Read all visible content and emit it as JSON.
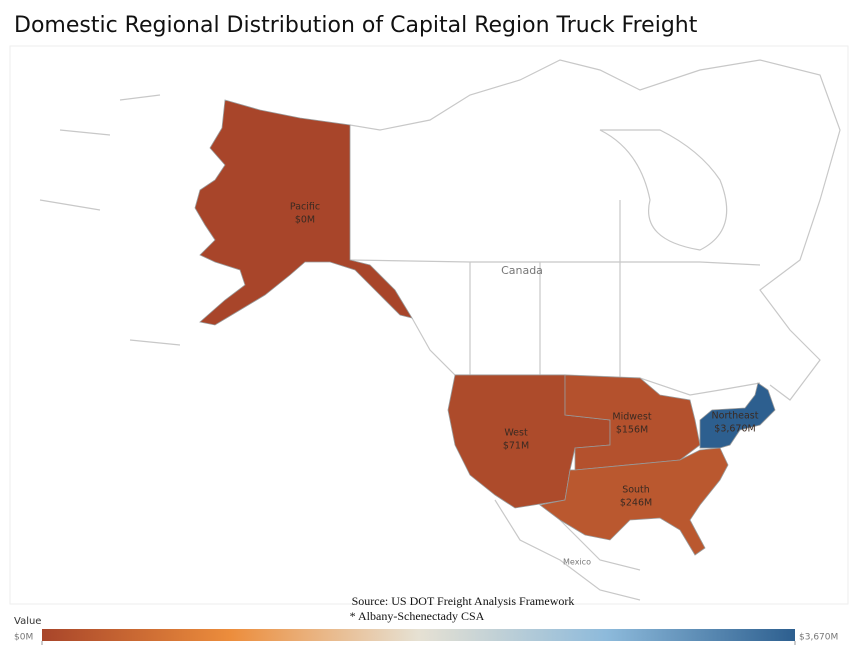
{
  "chart_data": {
    "type": "choropleth",
    "title": "Domestic Regional Distribution of Capital Region Truck Freight",
    "regions": [
      {
        "name": "Pacific",
        "value": 0,
        "value_label": "$0M"
      },
      {
        "name": "West",
        "value": 71,
        "value_label": "$71M"
      },
      {
        "name": "Midwest",
        "value": 156,
        "value_label": "$156M"
      },
      {
        "name": "South",
        "value": 246,
        "value_label": "$246M"
      },
      {
        "name": "Northeast",
        "value": 3670,
        "value_label": "$3,670M"
      }
    ],
    "places": [
      "Canada",
      "Mexico"
    ],
    "source": [
      "Source: US DOT Freight Analysis Framework",
      "* Albany-Schenectady CSA"
    ],
    "colorbar": {
      "title": "Value",
      "lim": [
        0,
        3670
      ],
      "ticks": [
        {
          "value": 0,
          "label": "$0M"
        },
        {
          "value": 3670,
          "label": "$3,670M"
        }
      ],
      "colors": [
        "#a8452a",
        "#ec8d3c",
        "#e6e1d3",
        "#8dbadb",
        "#2d5f8f"
      ]
    }
  }
}
